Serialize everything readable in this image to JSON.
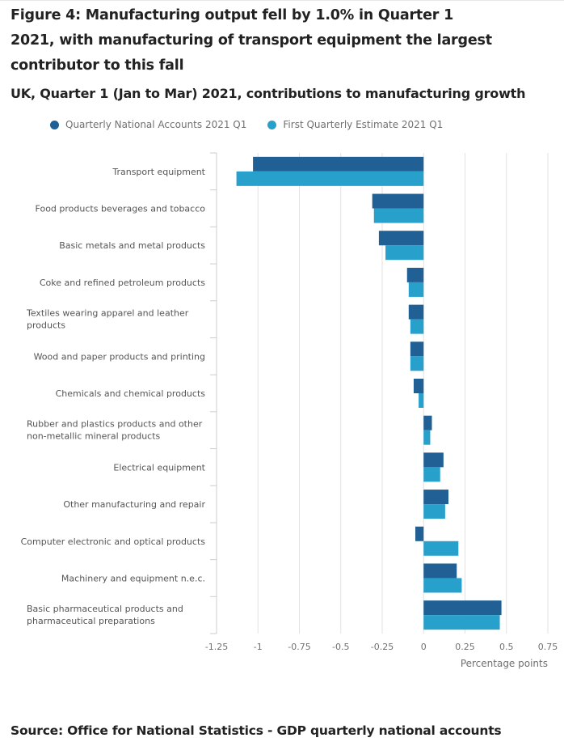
{
  "figure": {
    "title": "Figure 4: Manufacturing output fell by 1.0% in Quarter 1 2021, with manufacturing of transport equipment the largest contributor to this fall",
    "subtitle": "UK, Quarter 1 (Jan to Mar) 2021, contributions to manufacturing growth",
    "source": "Source: Office for National Statistics - GDP quarterly national accounts"
  },
  "legend": [
    {
      "label": "Quarterly National Accounts 2021 Q1",
      "color": "#206095"
    },
    {
      "label": "First Quarterly Estimate 2021 Q1",
      "color": "#27a0cc"
    }
  ],
  "chart_data": {
    "type": "bar",
    "orientation": "horizontal",
    "title": "Figure 4: Manufacturing output fell by 1.0% in Quarter 1 2021, with manufacturing of transport equipment the largest contributor to this fall",
    "subtitle": "UK, Quarter 1 (Jan to Mar) 2021, contributions to manufacturing growth",
    "xlabel": "Percentage points",
    "ylabel": "",
    "xlim": [
      -1.25,
      0.75
    ],
    "xticks": [
      -1.25,
      -1,
      -0.75,
      -0.5,
      -0.25,
      0,
      0.25,
      0.5,
      0.75
    ],
    "xtick_labels": [
      "-1.25",
      "-1",
      "-0.75",
      "-0.5",
      "-0.25",
      "0",
      "0.25",
      "0.5",
      "0.75"
    ],
    "grid": true,
    "legend_position": "top-left",
    "categories": [
      "Transport equipment",
      "Food products beverages and tobacco",
      "Basic metals and metal products",
      "Coke and refined petroleum products",
      "Textiles wearing apparel and leather products",
      "Wood and paper products and printing",
      "Chemicals and chemical products",
      "Rubber and plastics products and other non-metallic mineral products",
      "Electrical equipment",
      "Other manufacturing and repair",
      "Computer electronic and optical products",
      "Machinery and equipment n.e.c.",
      "Basic pharmaceutical products and pharmaceutical preparations"
    ],
    "category_lines": [
      [
        "Transport equipment"
      ],
      [
        "Food products beverages and tobacco"
      ],
      [
        "Basic metals and metal products"
      ],
      [
        "Coke and refined petroleum products"
      ],
      [
        "Textiles wearing apparel and leather",
        "products"
      ],
      [
        "Wood and paper products and printing"
      ],
      [
        "Chemicals and chemical products"
      ],
      [
        "Rubber and plastics products and other",
        "non-metallic mineral products"
      ],
      [
        "Electrical equipment"
      ],
      [
        "Other manufacturing and repair"
      ],
      [
        "Computer electronic and optical products"
      ],
      [
        "Machinery and equipment n.e.c."
      ],
      [
        "Basic pharmaceutical products and",
        "pharmaceutical preparations"
      ]
    ],
    "series": [
      {
        "name": "Quarterly National Accounts 2021 Q1",
        "color": "#206095",
        "values": [
          -1.03,
          -0.31,
          -0.27,
          -0.1,
          -0.09,
          -0.08,
          -0.06,
          0.05,
          0.12,
          0.15,
          -0.05,
          0.2,
          0.47
        ]
      },
      {
        "name": "First Quarterly Estimate 2021 Q1",
        "color": "#27a0cc",
        "values": [
          -1.13,
          -0.3,
          -0.23,
          -0.09,
          -0.08,
          -0.08,
          -0.03,
          0.04,
          0.1,
          0.13,
          0.21,
          0.23,
          0.46
        ]
      }
    ]
  }
}
